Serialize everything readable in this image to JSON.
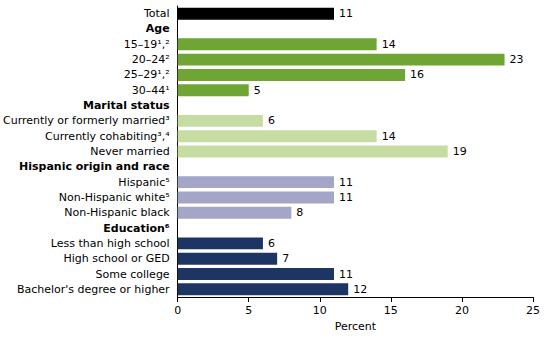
{
  "chart_data": {
    "type": "bar",
    "orientation": "horizontal",
    "categories": [
      "Total",
      "Age",
      "15–19¹,²",
      "20–24²",
      "25–29¹,²",
      "30–44¹",
      "Marital status",
      "Currently or formerly married³",
      "Currently cohabiting³,⁴",
      "Never married",
      "Hispanic origin and race",
      "Hispanic⁵",
      "Non-Hispanic white⁵",
      "Non-Hispanic black",
      "Education⁶",
      "Less than high school",
      "High school or GED",
      "Some college",
      "Bachelor's degree or higher"
    ],
    "values": [
      11,
      null,
      14,
      23,
      16,
      5,
      null,
      6,
      14,
      19,
      null,
      11,
      11,
      8,
      null,
      6,
      7,
      11,
      12
    ],
    "colors": [
      "#000000",
      null,
      "#6fa534",
      "#6fa534",
      "#6fa534",
      "#6fa534",
      null,
      "#c6dca3",
      "#c6dca3",
      "#c6dca3",
      null,
      "#a5a5c8",
      "#a5a5c8",
      "#a5a5c8",
      null,
      "#1d3563",
      "#1d3563",
      "#1d3563",
      "#1d3563"
    ],
    "x_label": "Percent",
    "xlim": [
      0,
      25
    ],
    "xticks": [
      0,
      5,
      10,
      15,
      20,
      25
    ],
    "grid": false,
    "data_labels": true
  }
}
